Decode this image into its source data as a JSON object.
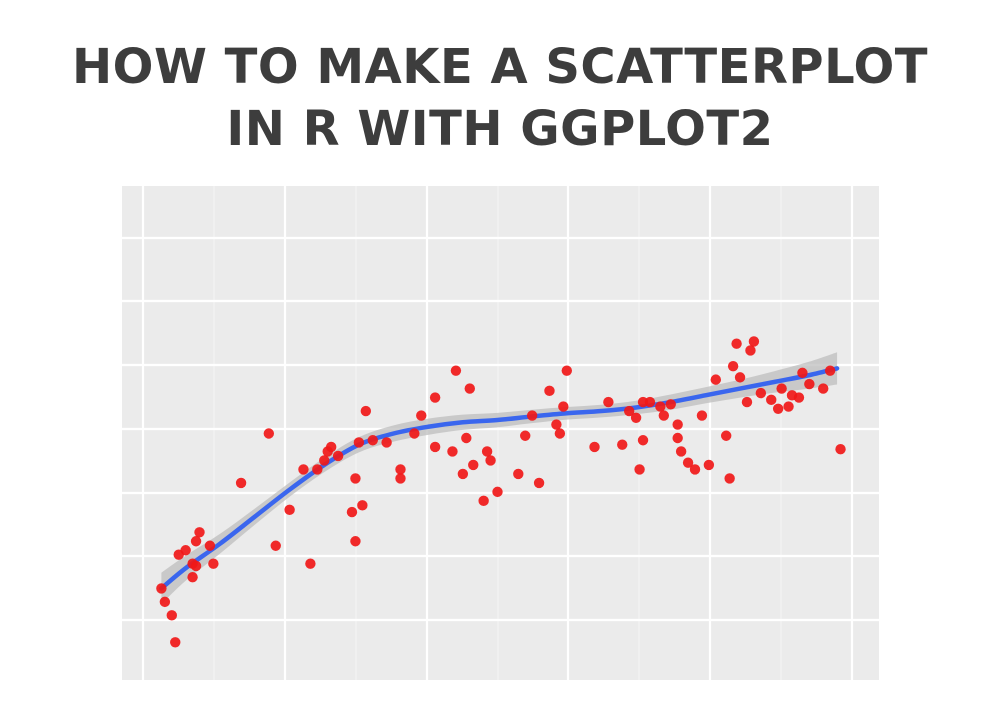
{
  "header": {
    "title_line1": "HOW TO MAKE A SCATTERPLOT",
    "title_line2": "IN R WITH GGPLOT2"
  },
  "colors": {
    "panel": "#ebebeb",
    "grid_major": "#ffffff",
    "grid_minor": "#f4f4f4",
    "point": "#f01818",
    "smooth_line": "#3a66ee",
    "confidence_band": "#bdbdbd",
    "title": "#3d3d3d"
  },
  "chart_data": {
    "type": "scatter",
    "title": "",
    "xlabel": "",
    "ylabel": "",
    "xlim": [
      0,
      10
    ],
    "ylim": [
      0,
      10
    ],
    "grid": true,
    "show_tick_labels": false,
    "points": [
      [
        0.15,
        1.55
      ],
      [
        0.2,
        1.25
      ],
      [
        0.3,
        0.95
      ],
      [
        0.35,
        0.35
      ],
      [
        0.4,
        2.3
      ],
      [
        0.5,
        2.4
      ],
      [
        0.6,
        1.8
      ],
      [
        0.6,
        2.1
      ],
      [
        0.65,
        2.05
      ],
      [
        0.65,
        2.6
      ],
      [
        0.7,
        2.8
      ],
      [
        0.85,
        2.5
      ],
      [
        0.9,
        2.1
      ],
      [
        1.3,
        3.9
      ],
      [
        1.7,
        5.0
      ],
      [
        1.8,
        2.5
      ],
      [
        2.0,
        3.3
      ],
      [
        2.2,
        4.2
      ],
      [
        2.3,
        2.1
      ],
      [
        2.4,
        4.2
      ],
      [
        2.5,
        4.4
      ],
      [
        2.55,
        4.6
      ],
      [
        2.6,
        4.7
      ],
      [
        2.7,
        4.5
      ],
      [
        2.9,
        3.25
      ],
      [
        2.95,
        2.6
      ],
      [
        2.95,
        4.0
      ],
      [
        3.0,
        4.8
      ],
      [
        3.05,
        3.4
      ],
      [
        3.1,
        5.5
      ],
      [
        3.2,
        4.85
      ],
      [
        3.4,
        4.8
      ],
      [
        3.6,
        4.2
      ],
      [
        3.6,
        4.0
      ],
      [
        3.8,
        5.0
      ],
      [
        3.9,
        5.4
      ],
      [
        4.1,
        4.7
      ],
      [
        4.1,
        5.8
      ],
      [
        4.35,
        4.6
      ],
      [
        4.4,
        6.4
      ],
      [
        4.5,
        4.1
      ],
      [
        4.55,
        4.9
      ],
      [
        4.6,
        6.0
      ],
      [
        4.65,
        4.3
      ],
      [
        4.8,
        3.5
      ],
      [
        4.85,
        4.6
      ],
      [
        4.9,
        4.4
      ],
      [
        5.0,
        3.7
      ],
      [
        5.3,
        4.1
      ],
      [
        5.4,
        4.95
      ],
      [
        5.5,
        5.4
      ],
      [
        5.6,
        3.9
      ],
      [
        5.75,
        5.95
      ],
      [
        5.85,
        5.2
      ],
      [
        5.9,
        5.0
      ],
      [
        5.95,
        5.6
      ],
      [
        6.0,
        6.4
      ],
      [
        6.4,
        4.7
      ],
      [
        6.6,
        5.7
      ],
      [
        6.8,
        4.75
      ],
      [
        6.9,
        5.5
      ],
      [
        7.0,
        5.35
      ],
      [
        7.05,
        4.2
      ],
      [
        7.1,
        5.7
      ],
      [
        7.1,
        4.85
      ],
      [
        7.2,
        5.7
      ],
      [
        7.35,
        5.6
      ],
      [
        7.4,
        5.4
      ],
      [
        7.5,
        5.65
      ],
      [
        7.6,
        4.9
      ],
      [
        7.6,
        5.2
      ],
      [
        7.65,
        4.6
      ],
      [
        7.75,
        4.35
      ],
      [
        7.85,
        4.2
      ],
      [
        7.95,
        5.4
      ],
      [
        8.05,
        4.3
      ],
      [
        8.15,
        6.2
      ],
      [
        8.3,
        4.95
      ],
      [
        8.35,
        4.0
      ],
      [
        8.4,
        6.5
      ],
      [
        8.45,
        7.0
      ],
      [
        8.5,
        6.25
      ],
      [
        8.6,
        5.7
      ],
      [
        8.65,
        6.85
      ],
      [
        8.7,
        7.05
      ],
      [
        8.8,
        5.9
      ],
      [
        8.95,
        5.75
      ],
      [
        9.05,
        5.55
      ],
      [
        9.1,
        6.0
      ],
      [
        9.2,
        5.6
      ],
      [
        9.25,
        5.85
      ],
      [
        9.35,
        5.8
      ],
      [
        9.4,
        6.35
      ],
      [
        9.5,
        6.1
      ],
      [
        9.7,
        6.0
      ],
      [
        9.8,
        6.4
      ],
      [
        9.95,
        4.65
      ]
    ],
    "smooth": {
      "method": "loess",
      "x": [
        0.15,
        0.5,
        1.0,
        1.5,
        2.0,
        2.5,
        3.0,
        3.5,
        4.0,
        4.5,
        5.0,
        5.5,
        6.0,
        6.5,
        7.0,
        7.5,
        8.0,
        8.5,
        9.0,
        9.5,
        9.9
      ],
      "y": [
        1.55,
        2.0,
        2.55,
        3.15,
        3.75,
        4.3,
        4.75,
        5.0,
        5.15,
        5.25,
        5.3,
        5.38,
        5.45,
        5.5,
        5.58,
        5.7,
        5.85,
        6.0,
        6.15,
        6.3,
        6.45
      ],
      "ci_halfwidth": [
        0.35,
        0.28,
        0.22,
        0.18,
        0.16,
        0.16,
        0.17,
        0.18,
        0.18,
        0.17,
        0.16,
        0.15,
        0.14,
        0.14,
        0.15,
        0.17,
        0.18,
        0.2,
        0.24,
        0.3,
        0.36
      ]
    }
  }
}
